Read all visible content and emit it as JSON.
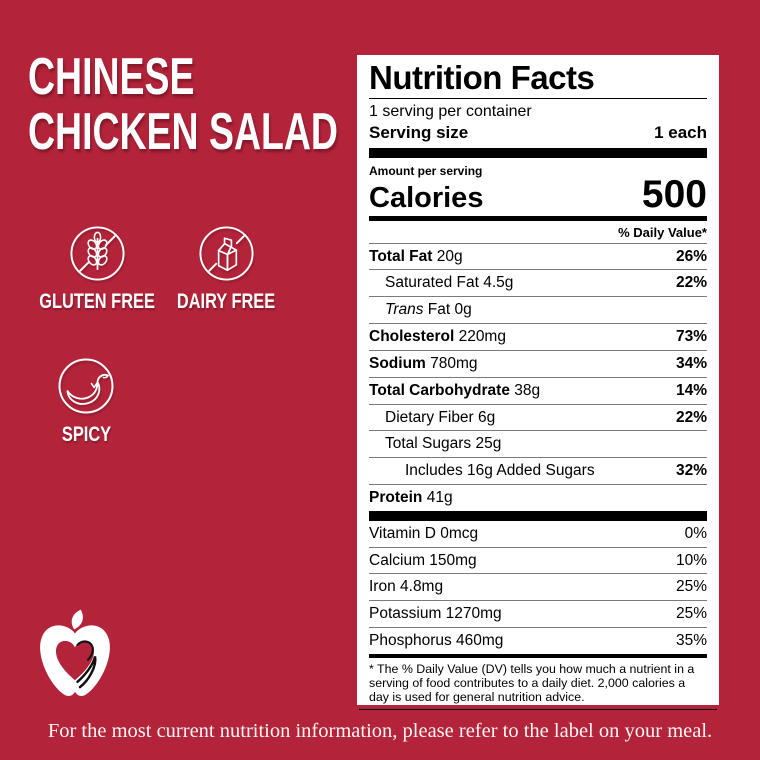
{
  "colors": {
    "background": "#B3243A",
    "label_bg": "#FFFFFF",
    "label_text": "#000000",
    "title_text": "#FFFFFF",
    "hairline": "#7B7B7B"
  },
  "title": {
    "lines": [
      "CHINESE",
      "CHICKEN SALAD"
    ]
  },
  "badges": [
    {
      "icon": "wheat-crossed-icon",
      "label": "GLUTEN FREE"
    },
    {
      "icon": "milk-carton-crossed-icon",
      "label": "DAIRY FREE"
    },
    {
      "icon": "chili-pepper-icon",
      "label": "SPICY"
    }
  ],
  "logo": {
    "icon": "apple-heart-logo"
  },
  "nutrition": {
    "title": "Nutrition Facts",
    "servings": "1 serving per container",
    "serving_size_label": "Serving size",
    "serving_size_value": "1 each",
    "amount_label": "Amount per serving",
    "calories_label": "Calories",
    "calories_value": "500",
    "dv_header": "% Daily Value*",
    "rows": [
      {
        "bold": "Total Fat",
        "text": " 20g",
        "dv": "26%",
        "indent": 0
      },
      {
        "text": "Saturated Fat 4.5g",
        "dv": "22%",
        "indent": 1
      },
      {
        "italic": "Trans",
        "text": " Fat 0g",
        "dv": "",
        "indent": 1
      },
      {
        "bold": "Cholesterol",
        "text": " 220mg",
        "dv": "73%",
        "indent": 0
      },
      {
        "bold": "Sodium",
        "text": " 780mg",
        "dv": "34%",
        "indent": 0
      },
      {
        "bold": "Total Carbohydrate",
        "text": " 38g",
        "dv": "14%",
        "indent": 0
      },
      {
        "text": "Dietary Fiber 6g",
        "dv": "22%",
        "indent": 1
      },
      {
        "text": "Total Sugars 25g",
        "dv": "",
        "indent": 1
      },
      {
        "text": "Includes 16g Added Sugars",
        "dv": "32%",
        "indent": 2
      },
      {
        "bold": "Protein",
        "text": " 41g",
        "dv": "",
        "indent": 0
      }
    ],
    "vitamins": [
      {
        "text": "Vitamin D 0mcg",
        "dv": "0%"
      },
      {
        "text": "Calcium 150mg",
        "dv": "10%"
      },
      {
        "text": "Iron 4.8mg",
        "dv": "25%"
      },
      {
        "text": "Potassium 1270mg",
        "dv": "25%"
      },
      {
        "text": "Phosphorus 460mg",
        "dv": "35%"
      }
    ],
    "footnote": "* The % Daily Value (DV) tells you how much a nutrient in a serving of food contributes to a daily diet. 2,000 calories a day is used for general nutrition advice."
  },
  "footer": {
    "text": "For the most current nutrition information, please refer to the label on your meal."
  }
}
